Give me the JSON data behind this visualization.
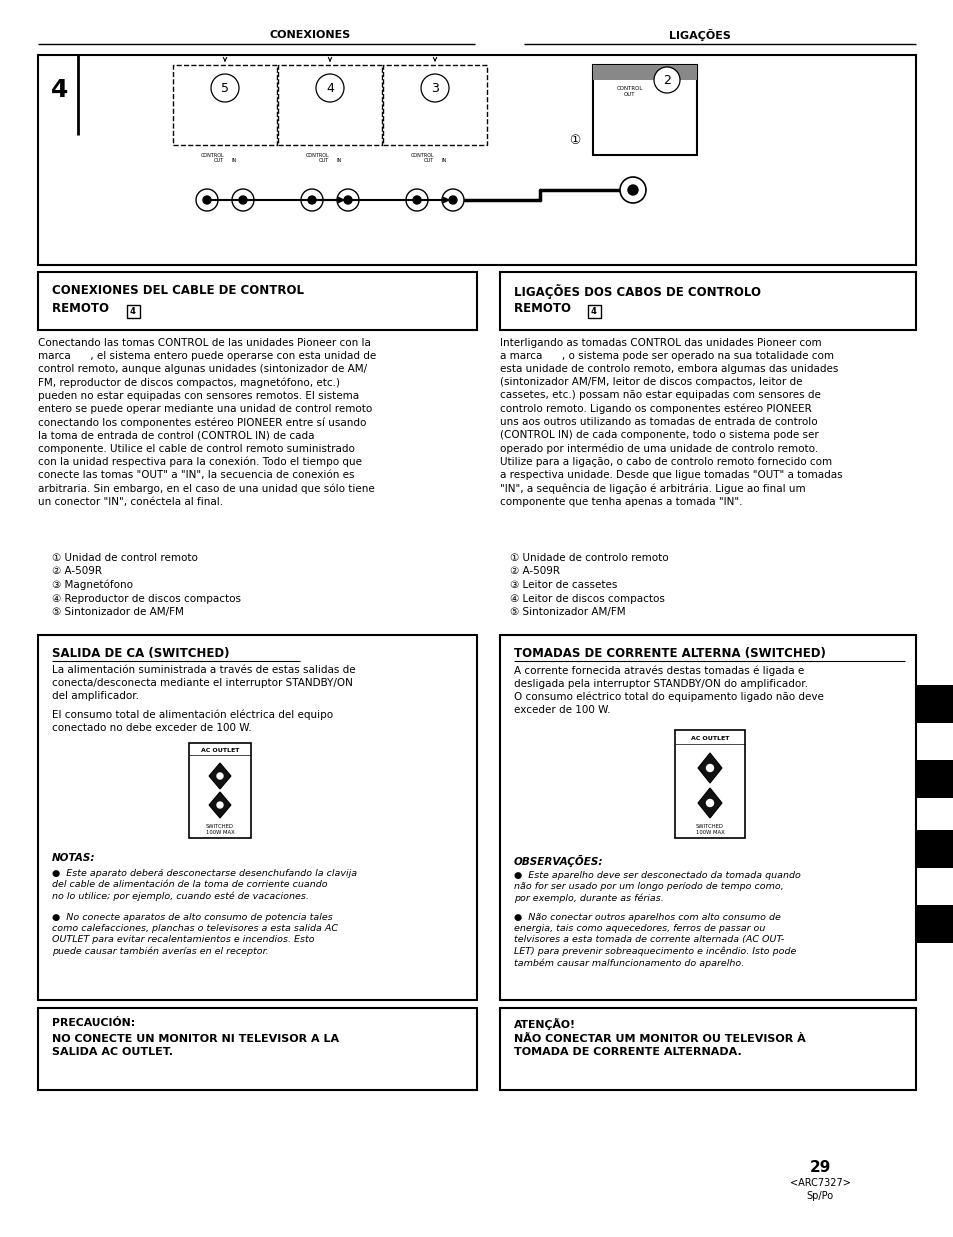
{
  "page_bg": "#ffffff",
  "header_left": "CONEXIONES",
  "header_right": "LIGAÇÕES",
  "page_number": "29",
  "arc_code": "<ARC7327>",
  "sp_po": "Sp/Po",
  "left_list": [
    "① Unidad de control remoto",
    "② A-509R",
    "③ Magnetófono",
    "④ Reproductor de discos compactos",
    "⑤ Sintonizador de AM/FM"
  ],
  "right_list": [
    "① Unidade de controlo remoto",
    "② A-509R",
    "③ Leitor de cassetes",
    "④ Leitor de discos compactos",
    "⑤ Sintonizador AM/FM"
  ],
  "salida_title": "SALIDA DE CA (SWITCHED)",
  "salida_body1": "La alimentación suministrada a través de estas salidas de\nconecta/desconecta mediante el interruptor STANDBY/ON\ndel amplificador.",
  "salida_body2": "El consumo total de alimentación eléctrica del equipo\nconectado no debe exceder de 100 W.",
  "tomadas_title": "TOMADAS DE CORRENTE ALTERNA (SWITCHED)",
  "tomadas_body": "A corrente fornecida através destas tomadas é ligada e\ndesligada pela interruptor STANDBY/ON do amplificador.\nO consumo eléctrico total do equipamento ligado não deve\nexceder de 100 W.",
  "notas_title": "NOTAS:",
  "notas_b1": "Este aparato deberá desconectarse desenchufando la clavija\ndel cable de alimentación de la toma de corriente cuando\nno lo utilice; por ejemplo, cuando esté de vacaciones.",
  "notas_b2": "No conecte aparatos de alto consumo de potencia tales\ncomo calefacciones, planchas o televisores a esta salida AC\nOUTLET para evitar recalentamientos e incendios. Esto\npuede causar también averías en el receptor.",
  "observacoes_title": "OBSERVAÇÕES:",
  "obs_b1": "Este aparelho deve ser desconectado da tomada quando\nnão for ser usado por um longo período de tempo como,\npor exemplo, durante as férias.",
  "obs_b2": "Não conectar outros aparelhos com alto consumo de\nenergia, tais como aquecedores, ferros de passar ou\ntelvisores a esta tomada de corrente alternada (AC OUT-\nLET) para prevenir sobreaquecimento e incêndio. Isto pode\ntambém causar malfuncionamento do aparelho.",
  "precaucion_title": "PRECAUCIÓN:",
  "precaucion_body": "NO CONECTE UN MONITOR NI TELEVISOR A LA\nSALIDA AC OUTLET.",
  "atencao_title": "ATENÇÃO!",
  "atencao_body": "NÃO CONECTAR UM MONITOR OU TELEVISOR À\nTOMADA DE CORRENTE ALTERNADA.",
  "left_body_lines": [
    "Conectando las tomas CONTROL de las unidades Pioneer con la",
    "marca      , el sistema entero puede operarse con esta unidad de",
    "control remoto, aunque algunas unidades (sintonizador de AM/",
    "FM, reproductor de discos compactos, magnetófono, etc.)",
    "pueden no estar equipadas con sensores remotos. El sistema",
    "entero se puede operar mediante una unidad de control remoto",
    "conectando los componentes estéreo PIONEER entre sí usando",
    "la toma de entrada de control (CONTROL IN) de cada",
    "componente. Utilice el cable de control remoto suministrado",
    "con la unidad respectiva para la conexión. Todo el tiempo que",
    "conecte las tomas \"OUT\" a \"IN\", la secuencia de conexión es",
    "arbitraria. Sin embargo, en el caso de una unidad que sólo tiene",
    "un conector \"IN\", conéctela al final."
  ],
  "right_body_lines": [
    "Interligando as tomadas CONTROL das unidades Pioneer com",
    "a marca      , o sistema pode ser operado na sua totalidade com",
    "esta unidade de controlo remoto, embora algumas das unidades",
    "(sintonizador AM/FM, leitor de discos compactos, leitor de",
    "cassetes, etc.) possam não estar equipadas com sensores de",
    "controlo remoto. Ligando os componentes estéreo PIONEER",
    "uns aos outros utilizando as tomadas de entrada de controlo",
    "(CONTROL IN) de cada componente, todo o sistema pode ser",
    "operado por intermédio de uma unidade de controlo remoto.",
    "Utilize para a ligação, o cabo de controlo remoto fornecido com",
    "a respectiva unidade. Desde que ligue tomadas \"OUT\" a tomadas",
    "\"IN\", a sequência de ligação é arbitrária. Ligue ao final um",
    "componente que tenha apenas a tomada \"IN\"."
  ]
}
